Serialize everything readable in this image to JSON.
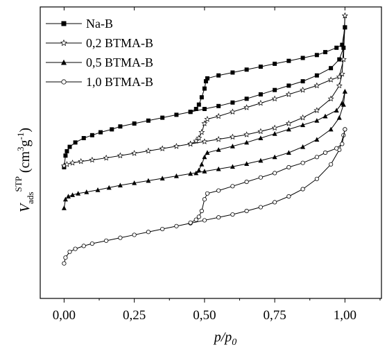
{
  "chart_data": {
    "type": "scatter",
    "title": "",
    "xlabel": {
      "main": "p/p",
      "sub": "0"
    },
    "ylabel": {
      "V": "V",
      "sub": "ads",
      "sup": "STP",
      "unit_open": " (cm",
      "unit_sup1": "3",
      "unit_mid": "g",
      "unit_sup2": "-1",
      "unit_close": ")"
    },
    "xlim": [
      -0.085,
      1.13
    ],
    "ylim": [
      0,
      100
    ],
    "xticks": [
      0.0,
      0.25,
      0.5,
      0.75,
      1.0
    ],
    "xtick_labels": [
      "0,00",
      "0,25",
      "0,50",
      "0,75",
      "1,00"
    ],
    "yticks_shown": false,
    "legend_position": "top-left",
    "series": [
      {
        "name": "Na-B",
        "marker": "square-filled",
        "adsorption": [
          [
            0.0,
            45.0
          ],
          [
            0.005,
            49.0
          ],
          [
            0.01,
            50.5
          ],
          [
            0.02,
            52.0
          ],
          [
            0.04,
            53.5
          ],
          [
            0.07,
            55.0
          ],
          [
            0.1,
            56.0
          ],
          [
            0.13,
            57.0
          ],
          [
            0.17,
            58.0
          ],
          [
            0.2,
            59.0
          ],
          [
            0.25,
            60.0
          ],
          [
            0.3,
            61.0
          ],
          [
            0.35,
            62.0
          ],
          [
            0.4,
            63.0
          ],
          [
            0.45,
            64.0
          ],
          [
            0.5,
            65.0
          ],
          [
            0.55,
            66.0
          ],
          [
            0.6,
            67.2
          ],
          [
            0.65,
            68.5
          ],
          [
            0.7,
            70.0
          ],
          [
            0.75,
            71.5
          ],
          [
            0.8,
            73.0
          ],
          [
            0.85,
            74.5
          ],
          [
            0.9,
            76.5
          ],
          [
            0.95,
            79.0
          ],
          [
            0.98,
            82.0
          ],
          [
            0.995,
            86.0
          ],
          [
            1.0,
            93.0
          ]
        ],
        "desorption": [
          [
            1.0,
            93.0
          ],
          [
            0.99,
            87.0
          ],
          [
            0.97,
            86.0
          ],
          [
            0.93,
            84.5
          ],
          [
            0.9,
            83.5
          ],
          [
            0.85,
            82.5
          ],
          [
            0.8,
            81.5
          ],
          [
            0.75,
            80.5
          ],
          [
            0.7,
            79.5
          ],
          [
            0.65,
            78.5
          ],
          [
            0.6,
            77.5
          ],
          [
            0.55,
            76.5
          ],
          [
            0.51,
            75.5
          ],
          [
            0.505,
            74.5
          ],
          [
            0.5,
            72.0
          ],
          [
            0.49,
            69.0
          ],
          [
            0.48,
            66.5
          ],
          [
            0.47,
            65.0
          ],
          [
            0.45,
            64.0
          ]
        ]
      },
      {
        "name": "0,2 BTMA-B",
        "marker": "star-open",
        "adsorption": [
          [
            0.0,
            45.5
          ],
          [
            0.01,
            46.0
          ],
          [
            0.03,
            46.5
          ],
          [
            0.06,
            47.0
          ],
          [
            0.1,
            47.5
          ],
          [
            0.15,
            48.2
          ],
          [
            0.2,
            49.0
          ],
          [
            0.25,
            49.8
          ],
          [
            0.3,
            50.6
          ],
          [
            0.35,
            51.4
          ],
          [
            0.4,
            52.2
          ],
          [
            0.45,
            53.0
          ],
          [
            0.5,
            53.8
          ],
          [
            0.55,
            54.6
          ],
          [
            0.6,
            55.4
          ],
          [
            0.65,
            56.2
          ],
          [
            0.7,
            57.3
          ],
          [
            0.75,
            58.5
          ],
          [
            0.8,
            60.0
          ],
          [
            0.85,
            62.0
          ],
          [
            0.9,
            64.5
          ],
          [
            0.95,
            68.5
          ],
          [
            0.98,
            73.0
          ],
          [
            0.99,
            77.0
          ],
          [
            1.0,
            97.0
          ]
        ],
        "desorption": [
          [
            1.0,
            97.0
          ],
          [
            0.995,
            82.0
          ],
          [
            0.98,
            76.0
          ],
          [
            0.95,
            75.0
          ],
          [
            0.9,
            73.0
          ],
          [
            0.85,
            71.5
          ],
          [
            0.8,
            70.0
          ],
          [
            0.75,
            68.5
          ],
          [
            0.7,
            67.0
          ],
          [
            0.65,
            65.5
          ],
          [
            0.6,
            64.0
          ],
          [
            0.55,
            62.5
          ],
          [
            0.51,
            61.5
          ],
          [
            0.5,
            60.0
          ],
          [
            0.49,
            57.0
          ],
          [
            0.48,
            55.0
          ],
          [
            0.47,
            54.0
          ],
          [
            0.45,
            53.0
          ]
        ]
      },
      {
        "name": "0,5 BTMA-B",
        "marker": "triangle-filled",
        "adsorption": [
          [
            0.0,
            31.0
          ],
          [
            0.005,
            34.0
          ],
          [
            0.015,
            35.0
          ],
          [
            0.03,
            35.5
          ],
          [
            0.05,
            36.0
          ],
          [
            0.08,
            36.5
          ],
          [
            0.12,
            37.2
          ],
          [
            0.16,
            38.0
          ],
          [
            0.2,
            38.8
          ],
          [
            0.25,
            39.6
          ],
          [
            0.3,
            40.4
          ],
          [
            0.35,
            41.2
          ],
          [
            0.4,
            42.0
          ],
          [
            0.45,
            42.8
          ],
          [
            0.5,
            43.6
          ],
          [
            0.55,
            44.4
          ],
          [
            0.6,
            45.2
          ],
          [
            0.65,
            46.2
          ],
          [
            0.7,
            47.3
          ],
          [
            0.75,
            48.5
          ],
          [
            0.8,
            50.0
          ],
          [
            0.85,
            52.0
          ],
          [
            0.9,
            54.5
          ],
          [
            0.95,
            58.0
          ],
          [
            0.98,
            62.0
          ],
          [
            0.995,
            66.5
          ],
          [
            1.0,
            71.0
          ]
        ],
        "desorption": [
          [
            1.0,
            71.0
          ],
          [
            0.99,
            67.0
          ],
          [
            0.97,
            64.5
          ],
          [
            0.93,
            62.5
          ],
          [
            0.9,
            61.0
          ],
          [
            0.85,
            59.5
          ],
          [
            0.8,
            58.0
          ],
          [
            0.75,
            56.5
          ],
          [
            0.7,
            55.0
          ],
          [
            0.65,
            53.5
          ],
          [
            0.6,
            52.2
          ],
          [
            0.55,
            51.0
          ],
          [
            0.51,
            50.0
          ],
          [
            0.5,
            48.5
          ],
          [
            0.49,
            46.0
          ],
          [
            0.48,
            44.0
          ],
          [
            0.47,
            43.0
          ]
        ]
      },
      {
        "name": "1,0 BTMA-B",
        "marker": "circle-open",
        "adsorption": [
          [
            0.0,
            12.0
          ],
          [
            0.005,
            14.0
          ],
          [
            0.02,
            16.0
          ],
          [
            0.04,
            17.0
          ],
          [
            0.07,
            18.0
          ],
          [
            0.1,
            18.8
          ],
          [
            0.15,
            19.8
          ],
          [
            0.2,
            20.8
          ],
          [
            0.25,
            21.8
          ],
          [
            0.3,
            22.8
          ],
          [
            0.35,
            23.8
          ],
          [
            0.4,
            24.8
          ],
          [
            0.45,
            25.8
          ],
          [
            0.5,
            26.8
          ],
          [
            0.55,
            27.8
          ],
          [
            0.6,
            28.8
          ],
          [
            0.65,
            30.0
          ],
          [
            0.7,
            31.3
          ],
          [
            0.75,
            33.0
          ],
          [
            0.8,
            35.0
          ],
          [
            0.85,
            37.5
          ],
          [
            0.9,
            41.0
          ],
          [
            0.95,
            46.0
          ],
          [
            0.98,
            51.0
          ],
          [
            0.995,
            56.0
          ],
          [
            1.0,
            58.0
          ]
        ],
        "desorption": [
          [
            1.0,
            58.0
          ],
          [
            0.99,
            53.0
          ],
          [
            0.97,
            51.5
          ],
          [
            0.93,
            50.0
          ],
          [
            0.9,
            48.5
          ],
          [
            0.85,
            46.5
          ],
          [
            0.8,
            45.0
          ],
          [
            0.75,
            43.0
          ],
          [
            0.7,
            41.5
          ],
          [
            0.65,
            40.0
          ],
          [
            0.6,
            38.5
          ],
          [
            0.55,
            37.0
          ],
          [
            0.51,
            36.0
          ],
          [
            0.5,
            34.0
          ],
          [
            0.49,
            30.0
          ],
          [
            0.48,
            28.0
          ],
          [
            0.47,
            27.0
          ],
          [
            0.45,
            26.0
          ]
        ]
      }
    ]
  }
}
